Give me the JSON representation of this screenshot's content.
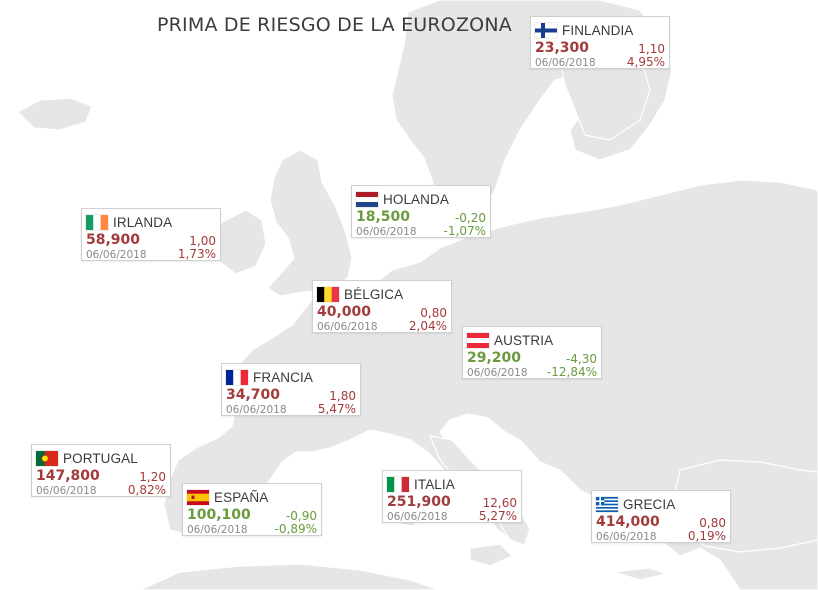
{
  "title": "PRIMA DE RIESGO DE LA EUROZONA",
  "colors": {
    "up": "#a23b3b",
    "down": "#6a9b3d",
    "land": "#e6e6e6",
    "sea": "#ffffff"
  },
  "countries": [
    {
      "id": "finlandia",
      "name": "FINLANDIA",
      "flag": "finland-flag",
      "value": "23,300",
      "change": "1,10",
      "date": "06/06/2018",
      "pct": "4,95%",
      "trend": "up"
    },
    {
      "id": "holanda",
      "name": "HOLANDA",
      "flag": "netherlands-flag",
      "value": "18,500",
      "change": "-0,20",
      "date": "06/06/2018",
      "pct": "-1,07%",
      "trend": "down"
    },
    {
      "id": "irlanda",
      "name": "IRLANDA",
      "flag": "ireland-flag",
      "value": "58,900",
      "change": "1,00",
      "date": "06/06/2018",
      "pct": "1,73%",
      "trend": "up"
    },
    {
      "id": "belgica",
      "name": "BÉLGICA",
      "flag": "belgium-flag",
      "value": "40,000",
      "change": "0,80",
      "date": "06/06/2018",
      "pct": "2,04%",
      "trend": "up"
    },
    {
      "id": "austria",
      "name": "AUSTRIA",
      "flag": "austria-flag",
      "value": "29,200",
      "change": "-4,30",
      "date": "06/06/2018",
      "pct": "-12,84%",
      "trend": "down"
    },
    {
      "id": "francia",
      "name": "FRANCIA",
      "flag": "france-flag",
      "value": "34,700",
      "change": "1,80",
      "date": "06/06/2018",
      "pct": "5,47%",
      "trend": "up"
    },
    {
      "id": "portugal",
      "name": "PORTUGAL",
      "flag": "portugal-flag",
      "value": "147,800",
      "change": "1,20",
      "date": "06/06/2018",
      "pct": "0,82%",
      "trend": "up"
    },
    {
      "id": "espana",
      "name": "ESPAÑA",
      "flag": "spain-flag",
      "value": "100,100",
      "change": "-0,90",
      "date": "06/06/2018",
      "pct": "-0,89%",
      "trend": "down"
    },
    {
      "id": "italia",
      "name": "ITALIA",
      "flag": "italy-flag",
      "value": "251,900",
      "change": "12,60",
      "date": "06/06/2018",
      "pct": "5,27%",
      "trend": "up"
    },
    {
      "id": "grecia",
      "name": "GRECIA",
      "flag": "greece-flag",
      "value": "414,000",
      "change": "0,80",
      "date": "06/06/2018",
      "pct": "0,19%",
      "trend": "up"
    }
  ]
}
